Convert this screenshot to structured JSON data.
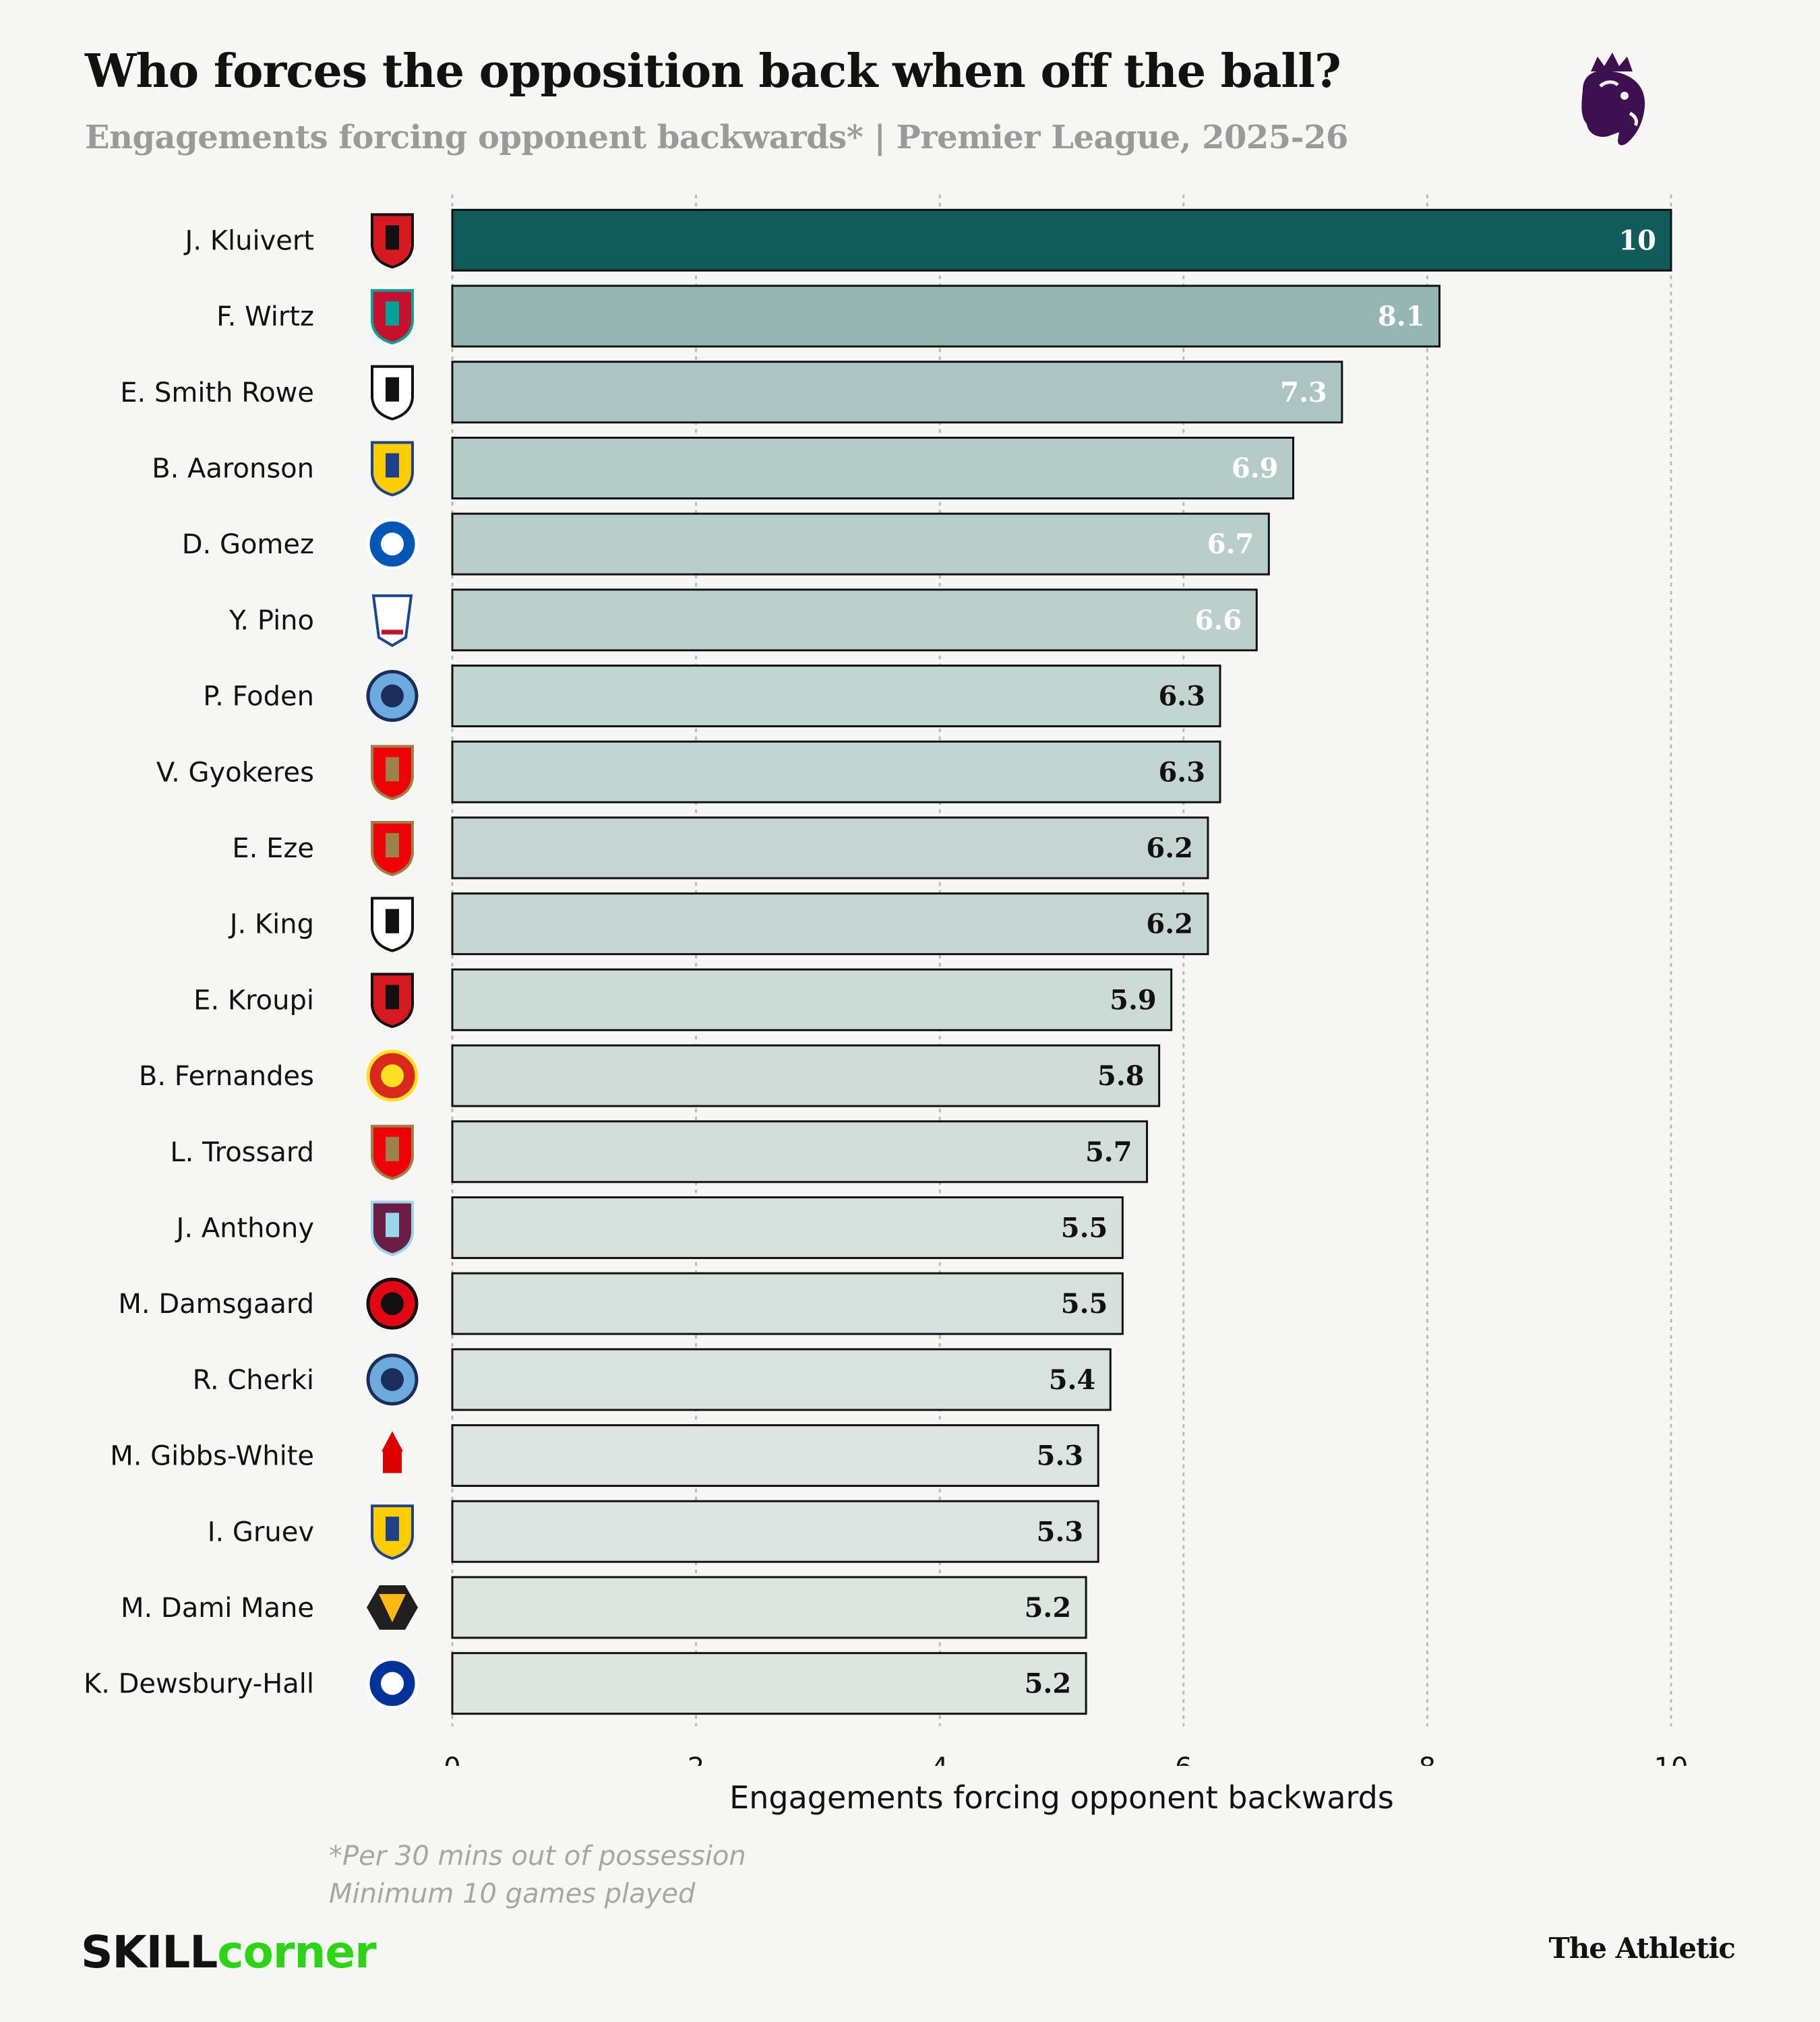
{
  "header": {
    "title": "Who forces the opposition back when off the ball?",
    "subtitle": "Engagements forcing opponent backwards* | Premier League, 2025-26"
  },
  "footer": {
    "note_line1": "*Per 30 mins out of possession",
    "note_line2": "Minimum 10 games played",
    "source_brand_part1": "SKILL",
    "source_brand_part2": "corner",
    "publisher": "The Athletic"
  },
  "colors": {
    "background": "#f6f6f2",
    "bar_top": "#115c5b",
    "bar_light": "#dde5e1",
    "pl_purple": "#3d1052",
    "skillcorner_green": "#2bd414"
  },
  "chart_data": {
    "type": "bar",
    "orientation": "horizontal",
    "title": "Who forces the opposition back when off the ball?",
    "subtitle": "Engagements forcing opponent backwards* | Premier League, 2025-26",
    "xlabel": "Engagements forcing opponent backwards",
    "ylabel": "",
    "xlim": [
      0,
      10
    ],
    "xticks": [
      0,
      2,
      4,
      6,
      8,
      10
    ],
    "grid": "vertical dotted",
    "categories": [
      "J. Kluivert",
      "F. Wirtz",
      "E. Smith Rowe",
      "B. Aaronson",
      "D. Gomez",
      "Y. Pino",
      "P. Foden",
      "V. Gyokeres",
      "E. Eze",
      "J. King",
      "E. Kroupi",
      "B. Fernandes",
      "L. Trossard",
      "J. Anthony",
      "M. Damsgaard",
      "R. Cherki",
      "M. Gibbs-White",
      "I. Gruev",
      "M. Dami Mane",
      "K. Dewsbury-Hall"
    ],
    "clubs": [
      "bournemouth",
      "liverpool",
      "fulham",
      "leeds",
      "brighton",
      "crystal-palace",
      "man-city",
      "arsenal",
      "arsenal",
      "fulham",
      "bournemouth",
      "man-united",
      "arsenal",
      "burnley",
      "brentford",
      "man-city",
      "nottingham-forest",
      "leeds",
      "wolves",
      "everton"
    ],
    "values": [
      10,
      8.1,
      7.3,
      6.9,
      6.7,
      6.6,
      6.3,
      6.3,
      6.2,
      6.2,
      5.9,
      5.8,
      5.7,
      5.5,
      5.5,
      5.4,
      5.3,
      5.3,
      5.2,
      5.2
    ],
    "data_labels": [
      "10",
      "8.1",
      "7.3",
      "6.9",
      "6.7",
      "6.6",
      "6.3",
      "6.3",
      "6.2",
      "6.2",
      "5.9",
      "5.8",
      "5.7",
      "5.5",
      "5.5",
      "5.4",
      "5.3",
      "5.3",
      "5.2",
      "5.2"
    ]
  }
}
